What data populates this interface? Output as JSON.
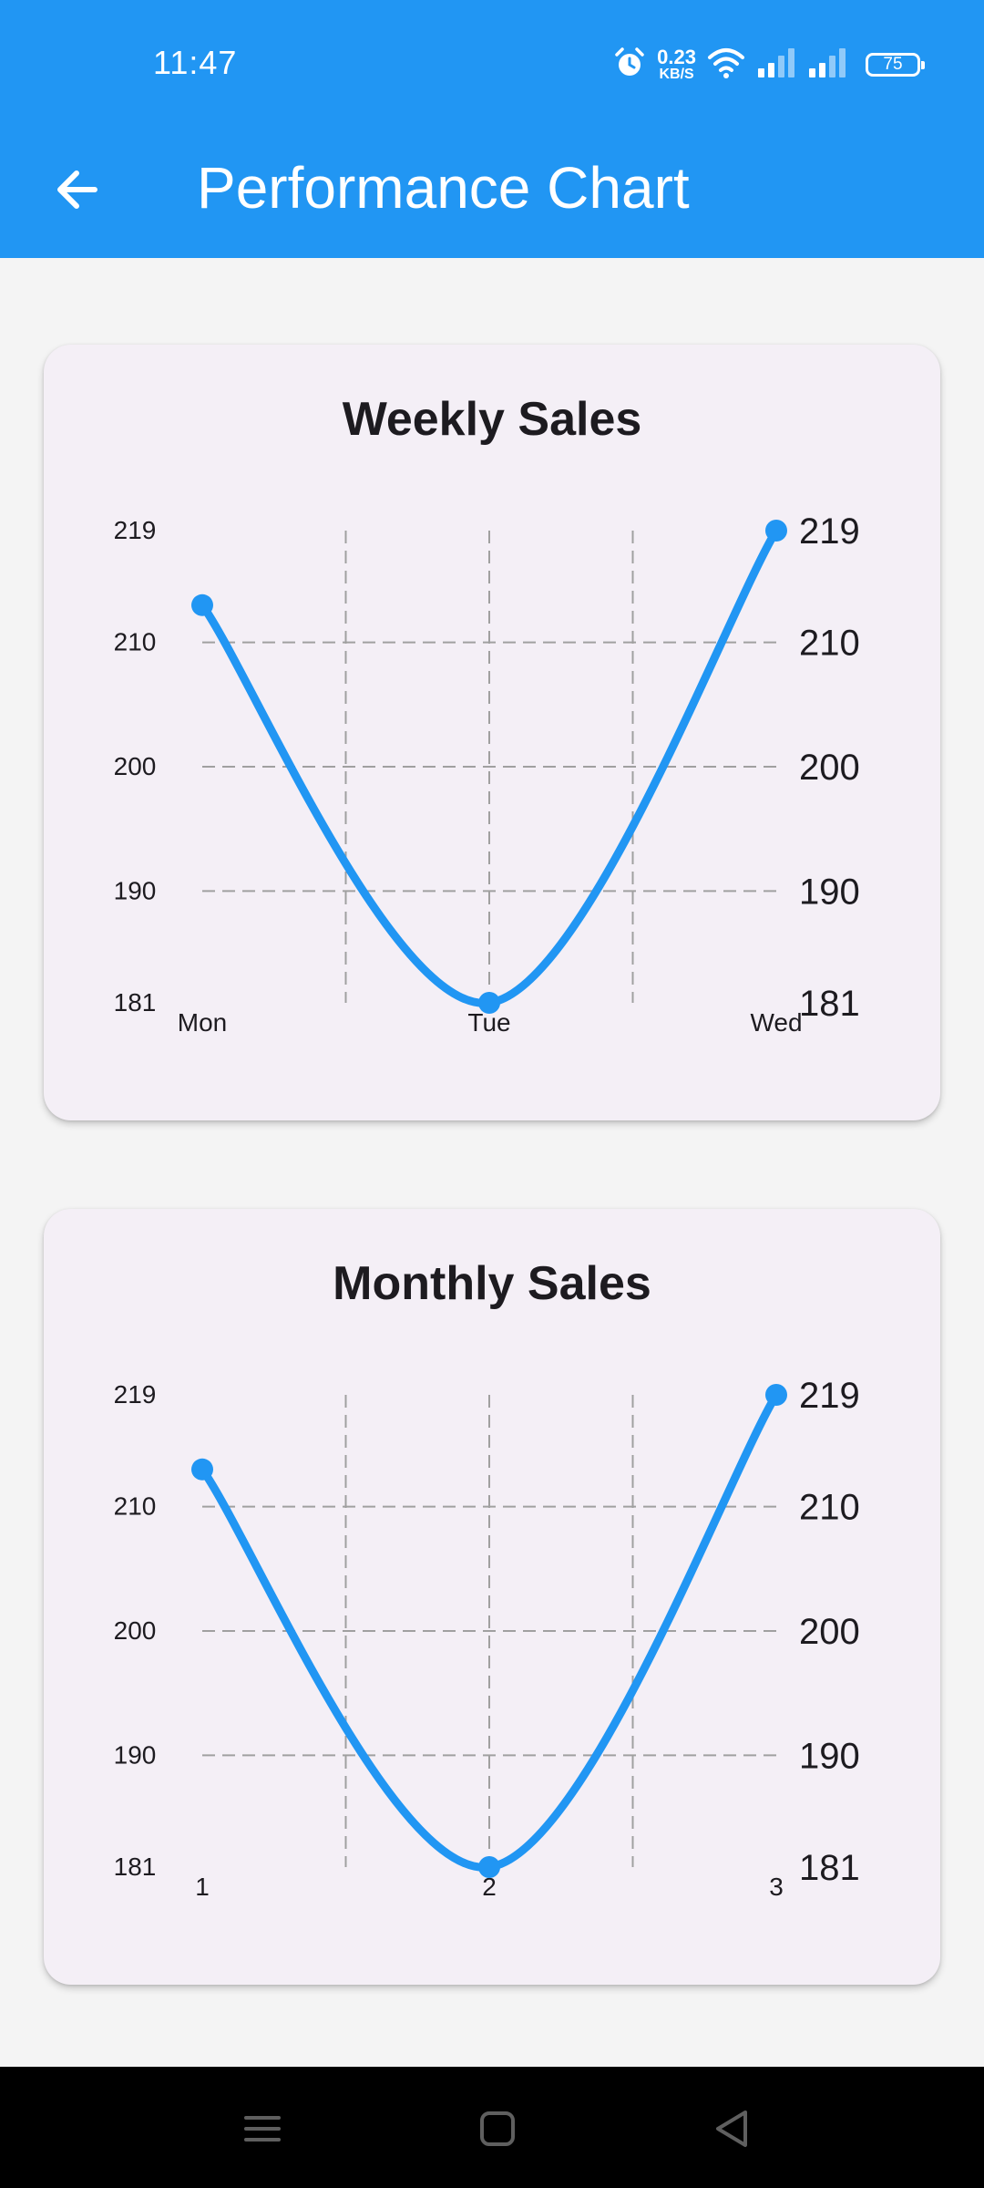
{
  "status_bar": {
    "time": "11:47",
    "net_speed_value": "0.23",
    "net_speed_unit": "KB/S",
    "battery": "75",
    "icons": [
      "alarm-icon",
      "wifi-icon",
      "signal-icon",
      "signal-icon"
    ]
  },
  "app_bar": {
    "title": "Performance Chart",
    "back_icon": "arrow-back-icon",
    "background": "#2196f3"
  },
  "charts": [
    {
      "title": "Weekly Sales"
    },
    {
      "title": "Monthly Sales"
    }
  ],
  "chart_data": [
    {
      "type": "line",
      "title": "Weekly Sales",
      "categories": [
        "Mon",
        "Tue",
        "Wed"
      ],
      "values": [
        213,
        181,
        219
      ],
      "ylim": [
        181,
        219
      ],
      "y_ticks_left": [
        "219",
        "210",
        "200",
        "190",
        "181"
      ],
      "y_ticks_right": [
        "219",
        "210",
        "200",
        "190",
        "181"
      ],
      "y_tick_values": [
        219,
        210,
        200,
        190,
        181
      ],
      "grid": true,
      "curved": true,
      "line_color": "#2196f3"
    },
    {
      "type": "line",
      "title": "Monthly Sales",
      "categories": [
        "1",
        "2",
        "3"
      ],
      "values": [
        213,
        181,
        219
      ],
      "ylim": [
        181,
        219
      ],
      "y_ticks_left": [
        "219",
        "210",
        "200",
        "190",
        "181"
      ],
      "y_ticks_right": [
        "219",
        "210",
        "200",
        "190",
        "181"
      ],
      "y_tick_values": [
        219,
        210,
        200,
        190,
        181
      ],
      "grid": true,
      "curved": true,
      "line_color": "#2196f3"
    }
  ],
  "nav_bar": {
    "icons": [
      "menu-icon",
      "home-icon",
      "back-triangle-icon"
    ]
  }
}
